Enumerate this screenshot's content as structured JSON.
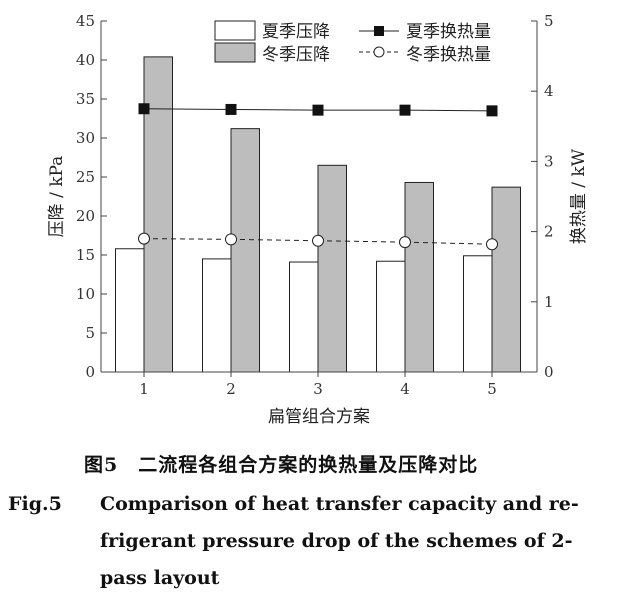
{
  "chart_data": {
    "type": "bar+line",
    "categories": [
      "1",
      "2",
      "3",
      "4",
      "5"
    ],
    "xlabel": "扁管组合方案",
    "ylabel": "压降 / kPa",
    "y2label": "换热量 / kW",
    "ylim": [
      0,
      45
    ],
    "yticks": [
      0,
      5,
      10,
      15,
      20,
      25,
      30,
      35,
      40,
      45
    ],
    "y2lim": [
      0,
      5
    ],
    "y2ticks": [
      0,
      1,
      2,
      3,
      4,
      5
    ],
    "grid": false,
    "legend_position": "top",
    "series": [
      {
        "name": "夏季压降",
        "type": "bar",
        "axis": "left",
        "color": "#ffffff",
        "values": [
          15.8,
          14.5,
          14.1,
          14.2,
          14.9
        ]
      },
      {
        "name": "冬季压降",
        "type": "bar",
        "axis": "left",
        "color": "#bdbdbd",
        "values": [
          40.4,
          31.2,
          26.5,
          24.3,
          23.7
        ]
      },
      {
        "name": "夏季换热量",
        "type": "line",
        "axis": "right",
        "marker": "filled-square",
        "linestyle": "solid",
        "values": [
          3.75,
          3.74,
          3.73,
          3.73,
          3.72
        ]
      },
      {
        "name": "冬季换热量",
        "type": "line",
        "axis": "right",
        "marker": "open-circle",
        "linestyle": "dashed",
        "values": [
          1.9,
          1.89,
          1.87,
          1.85,
          1.82
        ]
      }
    ]
  },
  "caption": {
    "cn": "图5　二流程各组合方案的换热量及压降对比",
    "en_label": "Fig.5",
    "en_lines": [
      "Comparison of heat transfer capacity and re-",
      "frigerant pressure drop of the schemes of 2-",
      "pass layout"
    ]
  }
}
